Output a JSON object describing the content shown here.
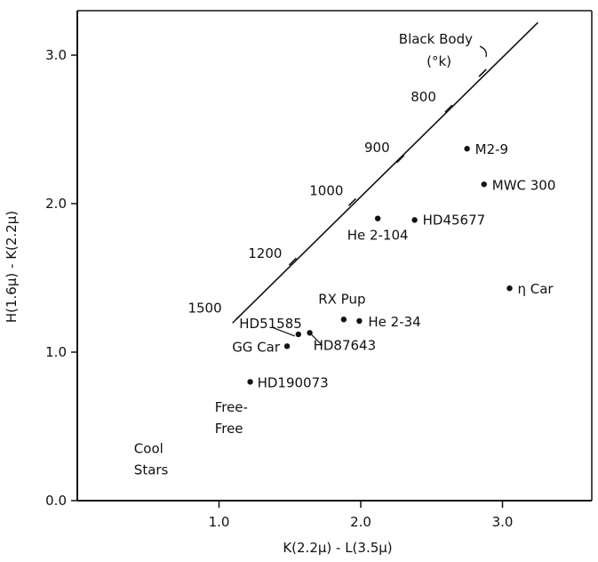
{
  "chart_data": {
    "type": "scatter",
    "title": "",
    "xlabel": "K(2.2μ) - L(3.5μ)",
    "ylabel": "H(1.6μ) - K(2.2μ)",
    "xlim": [
      0.0,
      3.5
    ],
    "ylim": [
      0.0,
      3.4
    ],
    "xticks": [
      {
        "value": 1.0,
        "label": "1.0"
      },
      {
        "value": 2.0,
        "label": "2.0"
      },
      {
        "value": 3.0,
        "label": "3.0"
      }
    ],
    "yticks": [
      {
        "value": 0.0,
        "label": "0.0"
      },
      {
        "value": 1.0,
        "label": "1.0"
      },
      {
        "value": 2.0,
        "label": "2.0"
      },
      {
        "value": 3.0,
        "label": "3.0"
      }
    ],
    "grid": false,
    "black_body": {
      "title": "Black Body",
      "unit": "(°k)",
      "line": [
        [
          1.12,
          1.22
        ],
        [
          3.25,
          3.22
        ]
      ],
      "markers": [
        {
          "label": "1500",
          "x": 1.12,
          "y": 1.22
        },
        {
          "label": "1200",
          "x": 1.52,
          "y": 1.61
        },
        {
          "label": "1000",
          "x": 1.94,
          "y": 2.01
        },
        {
          "label": "900",
          "x": 2.28,
          "y": 2.3
        },
        {
          "label": "800",
          "x": 2.62,
          "y": 2.64
        },
        {
          "label": "",
          "x": 2.86,
          "y": 2.88
        }
      ]
    },
    "points": [
      {
        "label": "M2-9",
        "x": 2.75,
        "y": 2.37
      },
      {
        "label": "MWC 300",
        "x": 2.87,
        "y": 2.13
      },
      {
        "label": "HD45677",
        "x": 2.38,
        "y": 1.89
      },
      {
        "label": "He 2-104",
        "x": 2.12,
        "y": 1.9
      },
      {
        "label": "η Car",
        "x": 3.05,
        "y": 1.43
      },
      {
        "label": "RX Pup",
        "x": 1.88,
        "y": 1.22
      },
      {
        "label": "He 2-34",
        "x": 1.99,
        "y": 1.21
      },
      {
        "label": "HD51585",
        "x": 1.56,
        "y": 1.12
      },
      {
        "label": "HD87643",
        "x": 1.64,
        "y": 1.13
      },
      {
        "label": "GG Car",
        "x": 1.48,
        "y": 1.04
      },
      {
        "label": "HD190073",
        "x": 1.22,
        "y": 0.8
      }
    ],
    "region_labels": [
      {
        "lines": [
          "Free-",
          "Free"
        ],
        "x": 0.97,
        "y": 0.6
      },
      {
        "lines": [
          "Cool",
          "Stars"
        ],
        "x": 0.4,
        "y": 0.32
      }
    ]
  }
}
